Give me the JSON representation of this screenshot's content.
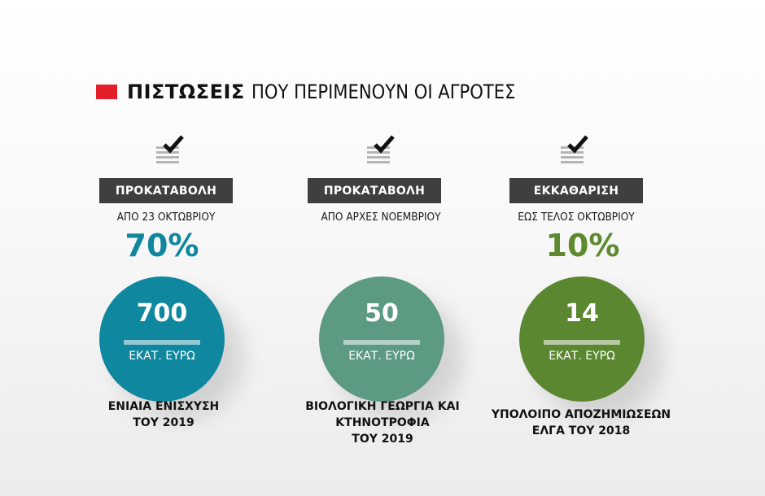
{
  "title": {
    "bold": "ΠΙΣΤΩΣΕΙΣ",
    "rest": "ΠΟΥ ΠΕΡΙΜΕΝΟΥΝ ΟΙ ΑΓΡΟΤΕΣ",
    "accent_color": "#e3202a"
  },
  "columns": [
    {
      "label": "ΠΡΟΚΑΤΑΒΟΛΗ",
      "date": "ΑΠΟ 23 ΟΚΤΩΒΡΙΟΥ",
      "percent": "70%",
      "percent_color": "#10879d",
      "amount": "700",
      "unit": "ΕΚΑΤ. ΕΥΡΩ",
      "circle_color": "#0f879f",
      "desc": [
        "ΕΝΙΑΙΑ ΕΝΙΣΧΥΣΗ",
        "ΤΟΥ 2019"
      ]
    },
    {
      "label": "ΠΡΟΚΑΤΑΒΟΛΗ",
      "date": "ΑΠΟ ΑΡΧΕΣ ΝΟΕΜΒΡΙΟΥ",
      "percent": "",
      "percent_color": "#5f9980",
      "amount": "50",
      "unit": "ΕΚΑΤ. ΕΥΡΩ",
      "circle_color": "#5c9a82",
      "desc": [
        "ΒΙΟΛΟΓΙΚΗ ΓΕΩΡΓΙΑ ΚΑΙ",
        "ΚΤΗΝΟΤΡΟΦΙΑ",
        "ΤΟΥ 2019"
      ]
    },
    {
      "label": "ΕΚΚΑΘΑΡΙΣΗ",
      "date": "ΕΩΣ ΤΕΛΟΣ ΟΚΤΩΒΡΙΟΥ",
      "percent": "10%",
      "percent_color": "#5d8a2f",
      "amount": "14",
      "unit": "ΕΚΑΤ. ΕΥΡΩ",
      "circle_color": "#5b8731",
      "desc": [
        "ΥΠΟΛΟΙΠΟ ΑΠΟΖΗΜΙΩΣΕΩΝ",
        "ΕΛΓΑ ΤΟΥ 2018"
      ]
    }
  ],
  "icons": {
    "document_check": "document-check-icon"
  }
}
